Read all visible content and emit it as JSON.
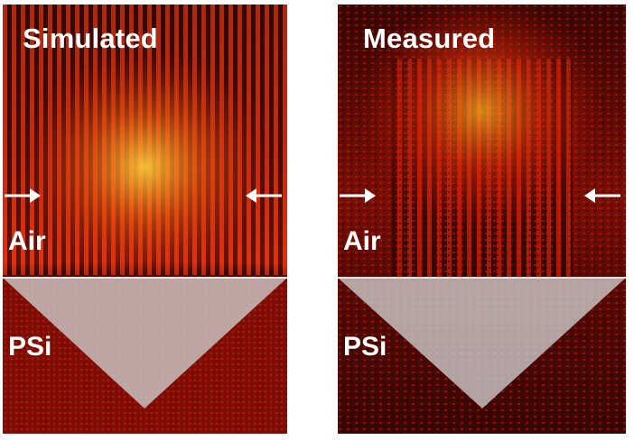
{
  "panels": [
    {
      "title": "Simulated",
      "upper_label": "Air",
      "lower_label": "PSi"
    },
    {
      "title": "Measured",
      "upper_label": "Air",
      "lower_label": "PSi"
    }
  ],
  "colors": {
    "background": "#ffffff",
    "field_dark": "#2a0402",
    "field_mid": "#c41808",
    "field_hot": "#ffd23c",
    "substrate_overlay": "#cfcfcf",
    "text": "#ffffff"
  }
}
